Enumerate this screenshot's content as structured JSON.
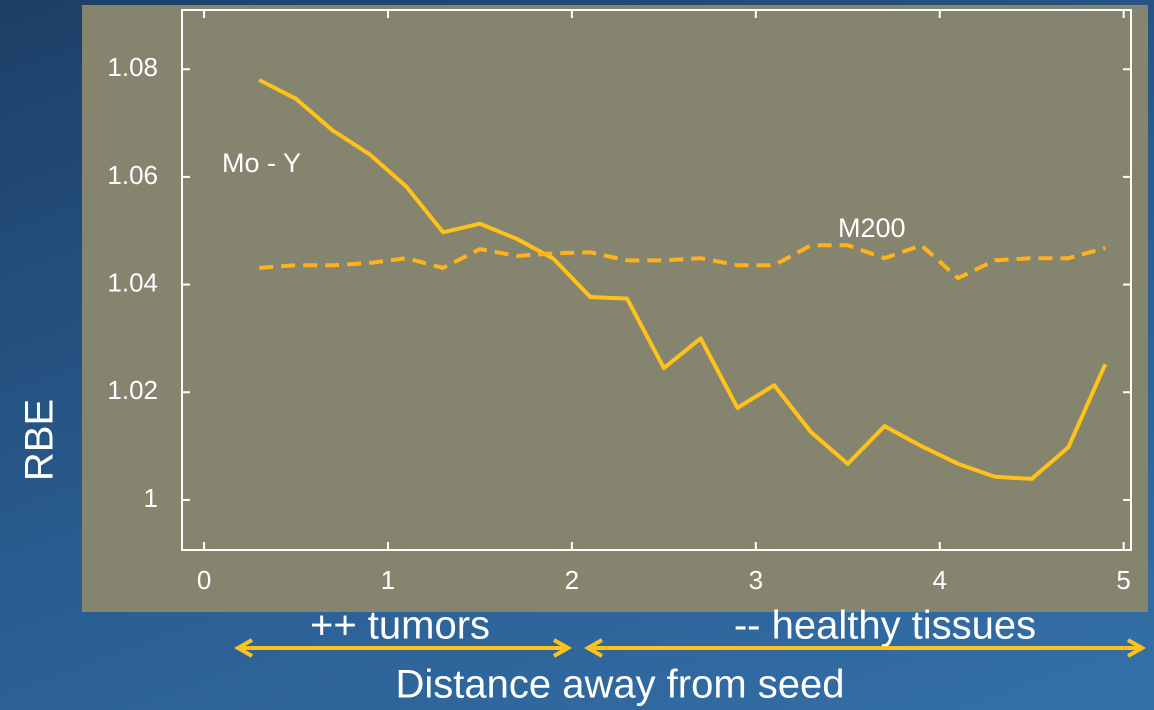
{
  "chart_data": {
    "type": "line",
    "ylabel": "RBE",
    "xlabel": "Distance away from seed",
    "annotations": [
      "++ tumors",
      "-- healthy tissues"
    ],
    "x": [
      0.3,
      0.5,
      0.7,
      0.9,
      1.1,
      1.3,
      1.5,
      1.7,
      1.9,
      2.1,
      2.3,
      2.5,
      2.7,
      2.9,
      3.1,
      3.3,
      3.5,
      3.7,
      3.9,
      4.1,
      4.3,
      4.5,
      4.7,
      4.9
    ],
    "series": [
      {
        "name": "Mo - Y",
        "color": "#ffc21a",
        "dash": false,
        "values": [
          1.078,
          1.0745,
          1.0686,
          1.0642,
          1.0582,
          1.0497,
          1.0513,
          1.0485,
          1.0448,
          1.0377,
          1.0374,
          1.0245,
          1.03,
          1.0171,
          1.0213,
          1.0126,
          1.0067,
          1.0137,
          1.01,
          1.0067,
          1.0043,
          1.0039,
          1.0098,
          1.0252
        ]
      },
      {
        "name": "M200",
        "color": "#ffb21a",
        "dash": true,
        "values": [
          1.0431,
          1.0436,
          1.0436,
          1.044,
          1.0449,
          1.0431,
          1.0466,
          1.0453,
          1.0458,
          1.046,
          1.0445,
          1.0445,
          1.0449,
          1.0436,
          1.0436,
          1.0473,
          1.0473,
          1.0449,
          1.0473,
          1.0412,
          1.0445,
          1.0449,
          1.0449,
          1.0468
        ]
      }
    ],
    "xlim": [
      -0.12,
      5.04
    ],
    "ylim": [
      0.9907,
      1.091
    ],
    "xticks": [
      0,
      1,
      2,
      3,
      4,
      5
    ],
    "yticks": [
      1,
      1.02,
      1.04,
      1.06,
      1.08
    ]
  }
}
